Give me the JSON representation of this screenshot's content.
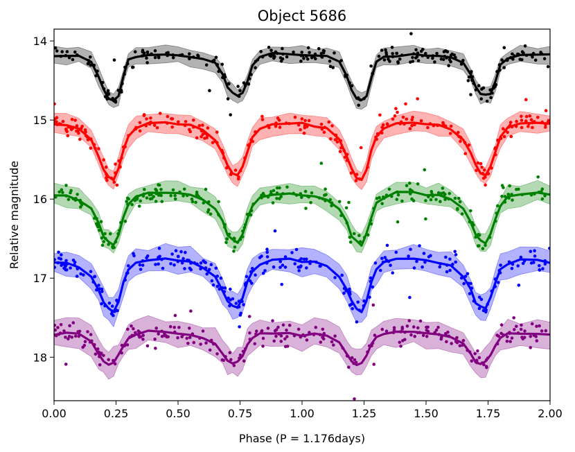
{
  "chart_data": {
    "type": "line",
    "title": "Object 5686",
    "xlabel": "Phase (P = 1.176days)",
    "ylabel": "Relative magnitude",
    "xlim": [
      0.0,
      2.0
    ],
    "ylim": [
      18.55,
      13.85
    ],
    "y_inverted": true,
    "grid": false,
    "x_ticks": [
      "0.00",
      "0.25",
      "0.50",
      "0.75",
      "1.00",
      "1.25",
      "1.50",
      "1.75",
      "2.00"
    ],
    "y_ticks": [
      "14",
      "15",
      "16",
      "17",
      "18"
    ],
    "x_tick_values": [
      0.0,
      0.25,
      0.5,
      0.75,
      1.0,
      1.25,
      1.5,
      1.75,
      2.0
    ],
    "y_tick_values": [
      14,
      15,
      16,
      17,
      18
    ],
    "phase_grid": [
      0.0,
      0.05,
      0.1,
      0.15,
      0.18,
      0.2,
      0.22,
      0.24,
      0.26,
      0.28,
      0.3,
      0.33,
      0.38,
      0.45,
      0.5,
      0.55,
      0.6,
      0.65,
      0.68,
      0.7,
      0.72,
      0.74,
      0.76,
      0.78,
      0.8,
      0.83,
      0.88,
      0.95,
      1.0,
      1.05,
      1.1,
      1.15,
      1.18,
      1.2,
      1.22,
      1.24,
      1.26,
      1.28,
      1.3,
      1.33,
      1.38,
      1.45,
      1.5,
      1.55,
      1.6,
      1.65,
      1.68,
      1.7,
      1.72,
      1.74,
      1.76,
      1.78,
      1.8,
      1.83,
      1.88,
      1.95,
      2.0
    ],
    "series": [
      {
        "color": "#000000",
        "band_halfwidth": 0.1,
        "scatter": 0.09,
        "values": [
          14.18,
          14.18,
          14.19,
          14.26,
          14.45,
          14.62,
          14.72,
          14.75,
          14.7,
          14.45,
          14.25,
          14.2,
          14.18,
          14.17,
          14.18,
          14.19,
          14.22,
          14.28,
          14.42,
          14.58,
          14.66,
          14.68,
          14.66,
          14.52,
          14.3,
          14.2,
          14.17,
          14.17,
          14.18,
          14.18,
          14.19,
          14.26,
          14.45,
          14.62,
          14.72,
          14.75,
          14.7,
          14.45,
          14.25,
          14.2,
          14.18,
          14.17,
          14.18,
          14.19,
          14.22,
          14.28,
          14.42,
          14.58,
          14.66,
          14.68,
          14.66,
          14.52,
          14.3,
          14.2,
          14.17,
          14.17,
          14.18
        ]
      },
      {
        "color": "#ff0000",
        "band_halfwidth": 0.12,
        "scatter": 0.1,
        "values": [
          15.05,
          15.06,
          15.1,
          15.25,
          15.45,
          15.62,
          15.72,
          15.75,
          15.62,
          15.38,
          15.2,
          15.1,
          15.04,
          15.03,
          15.04,
          15.06,
          15.12,
          15.25,
          15.42,
          15.58,
          15.68,
          15.7,
          15.6,
          15.4,
          15.22,
          15.1,
          15.05,
          15.03,
          15.05,
          15.06,
          15.1,
          15.25,
          15.45,
          15.62,
          15.72,
          15.75,
          15.62,
          15.38,
          15.2,
          15.1,
          15.04,
          15.03,
          15.04,
          15.06,
          15.12,
          15.25,
          15.42,
          15.58,
          15.68,
          15.7,
          15.6,
          15.4,
          15.22,
          15.1,
          15.05,
          15.03,
          15.05
        ]
      },
      {
        "color": "#008000",
        "band_halfwidth": 0.12,
        "scatter": 0.1,
        "values": [
          15.95,
          15.96,
          16.0,
          16.12,
          16.3,
          16.48,
          16.55,
          16.58,
          16.45,
          16.22,
          16.05,
          15.98,
          15.93,
          15.92,
          15.93,
          15.95,
          16.0,
          16.12,
          16.28,
          16.45,
          16.52,
          16.55,
          16.45,
          16.25,
          16.08,
          15.98,
          15.93,
          15.92,
          15.95,
          15.96,
          16.0,
          16.12,
          16.3,
          16.48,
          16.55,
          16.58,
          16.45,
          16.22,
          16.05,
          15.98,
          15.93,
          15.92,
          15.93,
          15.95,
          16.0,
          16.12,
          16.28,
          16.45,
          16.52,
          16.55,
          16.45,
          16.25,
          16.08,
          15.98,
          15.93,
          15.92,
          15.95
        ]
      },
      {
        "color": "#0000ff",
        "band_halfwidth": 0.15,
        "scatter": 0.13,
        "values": [
          16.8,
          16.8,
          16.85,
          16.98,
          17.15,
          17.3,
          17.4,
          17.42,
          17.3,
          17.05,
          16.88,
          16.8,
          16.76,
          16.75,
          16.77,
          16.8,
          16.85,
          16.98,
          17.15,
          17.3,
          17.35,
          17.38,
          17.25,
          17.05,
          16.9,
          16.82,
          16.78,
          16.76,
          16.8,
          16.8,
          16.85,
          16.98,
          17.15,
          17.3,
          17.4,
          17.42,
          17.3,
          17.05,
          16.88,
          16.8,
          16.76,
          16.75,
          16.77,
          16.8,
          16.85,
          16.98,
          17.15,
          17.3,
          17.35,
          17.38,
          17.25,
          17.05,
          16.9,
          16.82,
          16.78,
          16.76,
          16.8
        ]
      },
      {
        "color": "#800080",
        "band_halfwidth": 0.16,
        "scatter": 0.12,
        "values": [
          17.72,
          17.7,
          17.72,
          17.8,
          17.95,
          18.05,
          18.1,
          18.08,
          17.98,
          17.85,
          17.75,
          17.7,
          17.68,
          17.68,
          17.7,
          17.72,
          17.75,
          17.82,
          17.95,
          18.05,
          18.08,
          18.05,
          17.98,
          17.85,
          17.75,
          17.7,
          17.7,
          17.7,
          17.72,
          17.7,
          17.72,
          17.8,
          17.95,
          18.05,
          18.1,
          18.08,
          17.98,
          17.85,
          17.75,
          17.7,
          17.68,
          17.68,
          17.7,
          17.72,
          17.75,
          17.82,
          17.95,
          18.05,
          18.08,
          18.05,
          17.98,
          17.85,
          17.75,
          17.7,
          17.7,
          17.7,
          17.72
        ]
      }
    ]
  }
}
